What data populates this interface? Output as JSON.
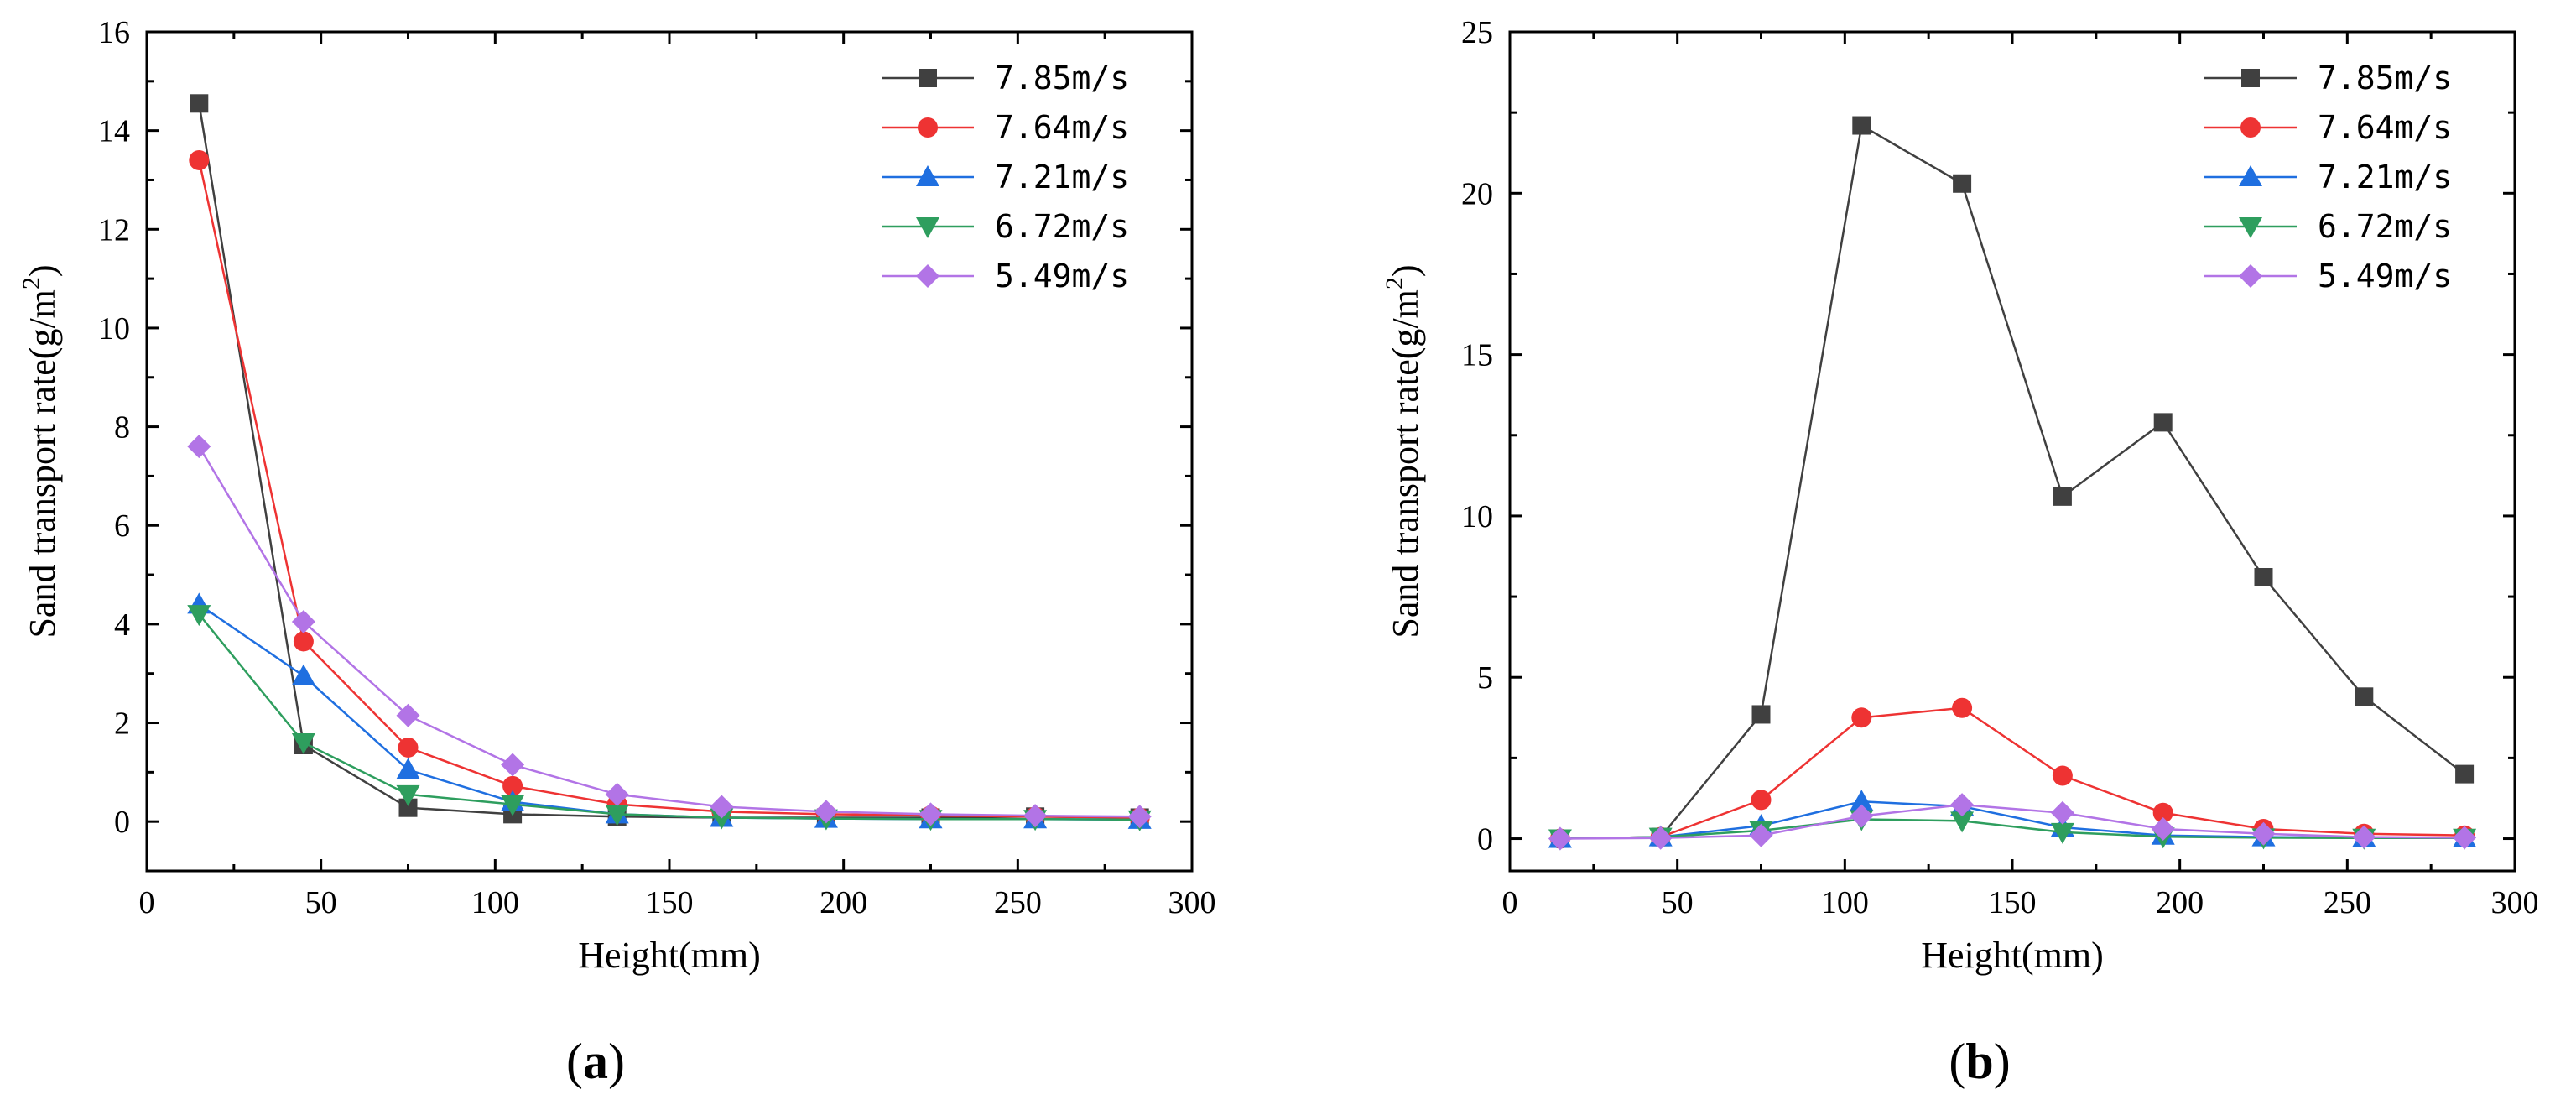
{
  "chart_data": [
    {
      "type": "line",
      "panel_label": "a",
      "xlabel": "Height(mm)",
      "ylabel_prefix": "Sand transport rate(g/m",
      "ylabel_sup": "2",
      "ylabel_suffix": ")",
      "xlim": [
        0,
        300
      ],
      "ylim": [
        -1,
        16
      ],
      "xticks": [
        0,
        50,
        100,
        150,
        200,
        250,
        300
      ],
      "yticks": [
        0,
        2,
        4,
        6,
        8,
        10,
        12,
        14,
        16
      ],
      "legend_position": "top-right",
      "x": [
        15,
        45,
        75,
        105,
        135,
        165,
        195,
        225,
        255,
        285
      ],
      "series": [
        {
          "name": "7.85m/s",
          "color": "#404040",
          "marker": "square",
          "values": [
            14.55,
            1.55,
            0.28,
            0.15,
            0.1,
            0.08,
            0.08,
            0.08,
            0.1,
            0.08
          ]
        },
        {
          "name": "7.64m/s",
          "color": "#ee3333",
          "marker": "circle",
          "values": [
            13.4,
            3.65,
            1.5,
            0.72,
            0.35,
            0.2,
            0.15,
            0.12,
            0.1,
            0.08
          ]
        },
        {
          "name": "7.21m/s",
          "color": "#1f6fe0",
          "marker": "triangle-up",
          "values": [
            4.4,
            2.95,
            1.05,
            0.4,
            0.15,
            0.08,
            0.06,
            0.05,
            0.05,
            0.04
          ]
        },
        {
          "name": "6.72m/s",
          "color": "#2e9e5e",
          "marker": "triangle-down",
          "values": [
            4.2,
            1.6,
            0.55,
            0.35,
            0.15,
            0.08,
            0.06,
            0.05,
            0.05,
            0.04
          ]
        },
        {
          "name": "5.49m/s",
          "color": "#b274e6",
          "marker": "diamond",
          "values": [
            7.6,
            4.05,
            2.15,
            1.15,
            0.55,
            0.3,
            0.2,
            0.15,
            0.12,
            0.1
          ]
        }
      ]
    },
    {
      "type": "line",
      "panel_label": "b",
      "xlabel": "Height(mm)",
      "ylabel_prefix": "Sand transport rate(g/m",
      "ylabel_sup": "2",
      "ylabel_suffix": ")",
      "xlim": [
        0,
        300
      ],
      "ylim": [
        -1,
        25
      ],
      "xticks": [
        0,
        50,
        100,
        150,
        200,
        250,
        300
      ],
      "yticks": [
        0,
        5,
        10,
        15,
        20,
        25
      ],
      "legend_position": "top-right",
      "x": [
        15,
        45,
        75,
        105,
        135,
        165,
        195,
        225,
        255,
        285
      ],
      "series": [
        {
          "name": "7.85m/s",
          "color": "#404040",
          "marker": "square",
          "values": [
            0.0,
            0.05,
            3.85,
            22.1,
            20.3,
            10.6,
            12.9,
            8.1,
            4.4,
            2.0
          ]
        },
        {
          "name": "7.64m/s",
          "color": "#ee3333",
          "marker": "circle",
          "values": [
            0.0,
            0.05,
            1.2,
            3.75,
            4.05,
            1.95,
            0.8,
            0.3,
            0.15,
            0.1
          ]
        },
        {
          "name": "7.21m/s",
          "color": "#1f6fe0",
          "marker": "triangle-up",
          "values": [
            0.0,
            0.05,
            0.4,
            1.15,
            1.0,
            0.35,
            0.1,
            0.05,
            0.03,
            0.02
          ]
        },
        {
          "name": "6.72m/s",
          "color": "#2e9e5e",
          "marker": "triangle-down",
          "values": [
            0.0,
            0.05,
            0.25,
            0.6,
            0.55,
            0.2,
            0.06,
            0.03,
            0.02,
            0.02
          ]
        },
        {
          "name": "5.49m/s",
          "color": "#b274e6",
          "marker": "diamond",
          "values": [
            0.0,
            0.02,
            0.1,
            0.7,
            1.05,
            0.8,
            0.3,
            0.15,
            0.05,
            0.03
          ]
        }
      ]
    }
  ]
}
